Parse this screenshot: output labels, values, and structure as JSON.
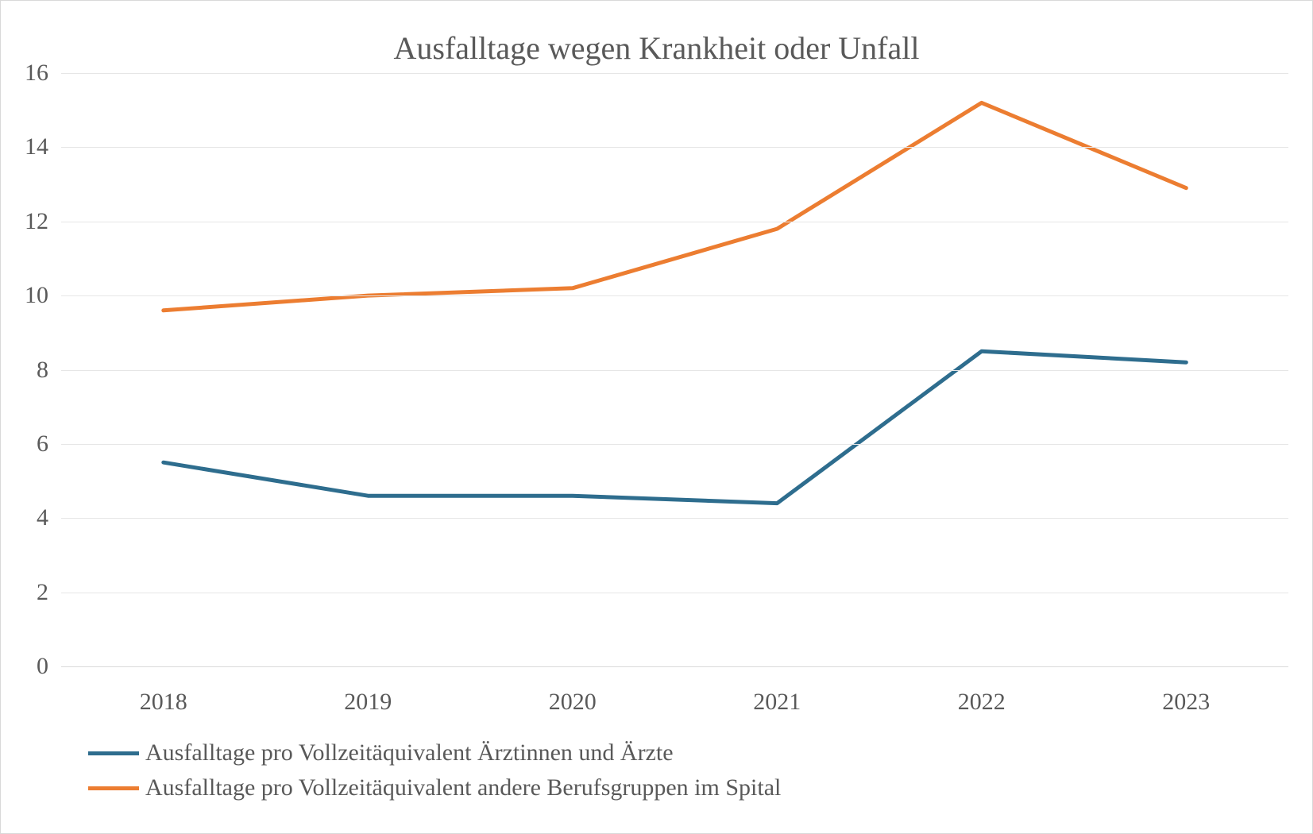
{
  "chart": {
    "type": "line",
    "title": "Ausfalltage wegen Krankheit oder Unfall",
    "title_fontsize": 40,
    "title_color": "#595959",
    "background_color": "#ffffff",
    "border_color": "#d9d9d9",
    "grid_color": "#e6e6e6",
    "axis_color": "#d9d9d9",
    "axis_label_color": "#595959",
    "axis_label_fontsize": 30,
    "font_family": "Georgia, 'Times New Roman', serif",
    "x": {
      "categories": [
        "2018",
        "2019",
        "2020",
        "2021",
        "2022",
        "2023"
      ]
    },
    "y": {
      "min": 0,
      "max": 16,
      "tick_step": 2,
      "ticks": [
        "16",
        "14",
        "12",
        "10",
        "8",
        "6",
        "4",
        "2",
        "0"
      ]
    },
    "line_width": 5,
    "series": [
      {
        "name": "Ausfalltage pro Vollzeitäquivalent Ärztinnen und Ärzte",
        "color": "#2e6d8e",
        "values": [
          5.5,
          4.6,
          4.6,
          4.4,
          8.5,
          8.2
        ]
      },
      {
        "name": "Ausfalltage pro Vollzeitäquivalent andere Berufsgruppen im Spital",
        "color": "#ec7d31",
        "values": [
          9.6,
          10.0,
          10.2,
          11.8,
          15.2,
          12.9
        ]
      }
    ],
    "legend": {
      "fontsize": 30,
      "color": "#595959",
      "swatch_width": 64,
      "swatch_line_width": 5
    }
  }
}
